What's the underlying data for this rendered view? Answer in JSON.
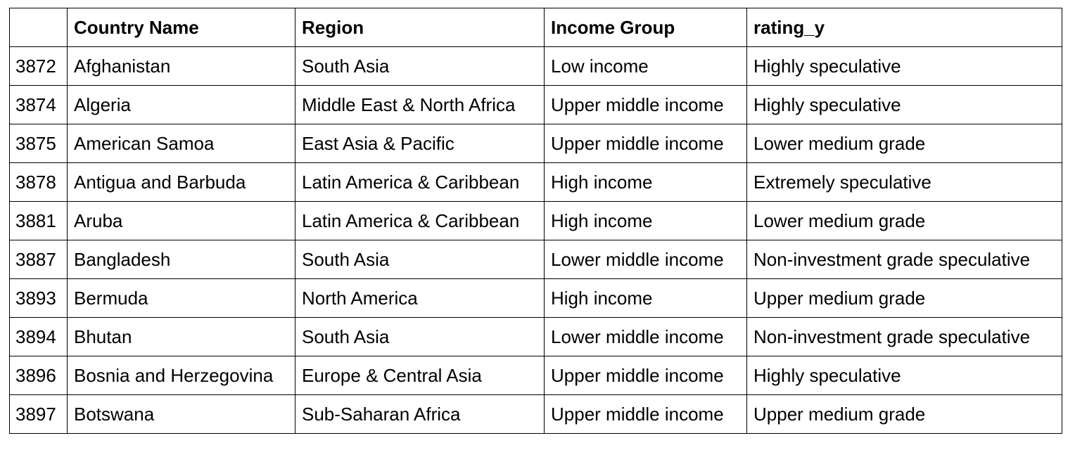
{
  "table": {
    "headers": [
      "",
      "Country Name",
      "Region",
      "Income Group",
      "rating_y"
    ],
    "rows": [
      [
        "3872",
        "Afghanistan",
        "South Asia",
        "Low income",
        "Highly speculative"
      ],
      [
        "3874",
        "Algeria",
        "Middle East & North Africa",
        "Upper middle income",
        "Highly speculative"
      ],
      [
        "3875",
        "American Samoa",
        "East Asia & Pacific",
        "Upper middle income",
        "Lower medium grade"
      ],
      [
        "3878",
        "Antigua and Barbuda",
        "Latin America & Caribbean",
        "High income",
        "Extremely speculative"
      ],
      [
        "3881",
        "Aruba",
        "Latin America & Caribbean",
        "High income",
        "Lower medium grade"
      ],
      [
        "3887",
        "Bangladesh",
        "South Asia",
        "Lower middle income",
        "Non-investment grade speculative"
      ],
      [
        "3893",
        "Bermuda",
        "North America",
        "High income",
        "Upper medium grade"
      ],
      [
        "3894",
        "Bhutan",
        "South Asia",
        "Lower middle income",
        "Non-investment grade speculative"
      ],
      [
        "3896",
        "Bosnia and Herzegovina",
        "Europe & Central Asia",
        "Upper middle income",
        "Highly speculative"
      ],
      [
        "3897",
        "Botswana",
        "Sub-Saharan Africa",
        "Upper middle income",
        "Upper medium grade"
      ]
    ]
  }
}
